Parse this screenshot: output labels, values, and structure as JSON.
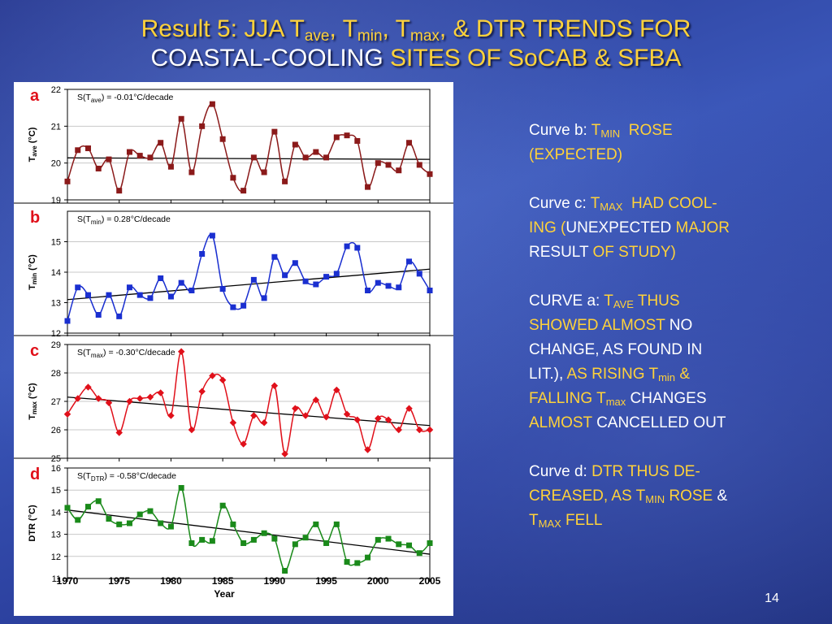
{
  "slide": {
    "title_line1_prefix": "Result 5: JJA T",
    "title_sub_ave": "ave",
    "title_sep1": ", T",
    "title_sub_min": "min",
    "title_sep2": ", T",
    "title_sub_max": "max",
    "title_line1_suffix": ", & DTR TRENDS FOR",
    "title_line2_white": "COASTAL-COOLING",
    "title_line2_yellow": "SITES OF SoCAB & SFBA",
    "page_number": "14",
    "colors": {
      "accent": "#ffd23a",
      "text": "#ffffff",
      "background": "#2b3f9d"
    }
  },
  "notes": {
    "b1_white": "Curve b: ",
    "b1_t": "T",
    "b1_sub": "MIN",
    "b1_yellow": "ROSE",
    "b2": "(EXPECTED)",
    "c1_white": "Curve c: ",
    "c1_t": "T",
    "c1_sub": "MAX",
    "c1_yellow": "HAD COOL-",
    "c2_y1": "ING (",
    "c2_white": "UNEXPECTED",
    "c2_y2": " MAJOR",
    "c3_white": "RESULT ",
    "c3_yellow": "OF STUDY)",
    "a1_white": "CURVE a: ",
    "a1_t": "T",
    "a1_sub": "AVE",
    "a1_yellow": " THUS",
    "a2_yellow": "SHOWED ALMOST ",
    "a2_white": "NO",
    "a3_white": "CHANGE, AS FOUND IN",
    "a4_white": "LIT.), ",
    "a4_yellow": "AS RISING T",
    "a4_sub": "min",
    "a4_yellow2": " &",
    "a5_yellow": "FALLING T",
    "a5_sub": "max",
    "a5_white": " CHANGES",
    "a6_yellow": "ALMOST ",
    "a6_white": "CANCELLED OUT",
    "d1_white": "Curve d: ",
    "d1_yellow": "DTR THUS DE-",
    "d2_yellow": "CREASED, AS T",
    "d2_sub": "MIN",
    "d2_white": " ROSE",
    "d2_amp": " &",
    "d3_t": "T",
    "d3_sub": "MAX",
    "d3_white": " FELL"
  },
  "chart_data": [
    {
      "type": "line",
      "panel_letter": "a",
      "ylabel_main": "T",
      "ylabel_sub": "ave",
      "ylabel_unit": " (°C)",
      "annotation_prefix": "S(T",
      "annotation_sub": "ave",
      "annotation_suffix": ") = -0.01°C/decade",
      "ylim": [
        19,
        22
      ],
      "yticks": [
        19,
        20,
        21,
        22
      ],
      "grid": "horizontal",
      "color": "#8b1a1a",
      "marker": "square",
      "years": [
        1970,
        1971,
        1972,
        1973,
        1974,
        1975,
        1976,
        1977,
        1978,
        1979,
        1980,
        1981,
        1982,
        1983,
        1984,
        1985,
        1986,
        1987,
        1988,
        1989,
        1990,
        1991,
        1992,
        1993,
        1994,
        1995,
        1996,
        1997,
        1998,
        1999,
        2000,
        2001,
        2002,
        2003,
        2004,
        2005
      ],
      "values": [
        19.5,
        20.35,
        20.4,
        19.85,
        20.1,
        19.25,
        20.3,
        20.2,
        20.15,
        20.55,
        19.9,
        21.2,
        19.75,
        21.0,
        21.6,
        20.65,
        19.6,
        19.25,
        20.15,
        19.75,
        20.85,
        19.5,
        20.5,
        20.15,
        20.3,
        20.15,
        20.7,
        20.75,
        20.6,
        19.35,
        20.0,
        19.95,
        19.8,
        20.55,
        19.95,
        19.7
      ],
      "trend": [
        20.14,
        20.1
      ]
    },
    {
      "type": "line",
      "panel_letter": "b",
      "ylabel_main": "T",
      "ylabel_sub": "min",
      "ylabel_unit": " (°C)",
      "annotation_prefix": "S(T",
      "annotation_sub": "min",
      "annotation_suffix": ") = 0.28°C/decade",
      "ylim": [
        12,
        16
      ],
      "yticks": [
        12,
        13,
        14,
        15
      ],
      "grid": "horizontal",
      "color": "#1a2fd0",
      "marker": "square",
      "years": [
        1970,
        1971,
        1972,
        1973,
        1974,
        1975,
        1976,
        1977,
        1978,
        1979,
        1980,
        1981,
        1982,
        1983,
        1984,
        1985,
        1986,
        1987,
        1988,
        1989,
        1990,
        1991,
        1992,
        1993,
        1994,
        1995,
        1996,
        1997,
        1998,
        1999,
        2000,
        2001,
        2002,
        2003,
        2004,
        2005
      ],
      "values": [
        12.4,
        13.5,
        13.25,
        12.6,
        13.25,
        12.55,
        13.5,
        13.25,
        13.15,
        13.8,
        13.2,
        13.65,
        13.4,
        14.6,
        15.2,
        13.45,
        12.85,
        12.9,
        13.75,
        13.15,
        14.5,
        13.9,
        14.3,
        13.7,
        13.6,
        13.85,
        13.95,
        14.85,
        14.8,
        13.4,
        13.65,
        13.55,
        13.5,
        14.35,
        13.95,
        13.4
      ],
      "trend": [
        13.1,
        14.1
      ]
    },
    {
      "type": "line",
      "panel_letter": "c",
      "ylabel_main": "T",
      "ylabel_sub": "max",
      "ylabel_unit": " (°C)",
      "annotation_prefix": "S(T",
      "annotation_sub": "max",
      "annotation_suffix": ") = -0.30°C/decade",
      "ylim": [
        25,
        29
      ],
      "yticks": [
        25,
        26,
        27,
        28,
        29
      ],
      "grid": "horizontal",
      "color": "#e0101a",
      "marker": "diamond",
      "years": [
        1970,
        1971,
        1972,
        1973,
        1974,
        1975,
        1976,
        1977,
        1978,
        1979,
        1980,
        1981,
        1982,
        1983,
        1984,
        1985,
        1986,
        1987,
        1988,
        1989,
        1990,
        1991,
        1992,
        1993,
        1994,
        1995,
        1996,
        1997,
        1998,
        1999,
        2000,
        2001,
        2002,
        2003,
        2004,
        2005
      ],
      "values": [
        26.55,
        27.1,
        27.5,
        27.1,
        26.95,
        25.9,
        27.0,
        27.1,
        27.15,
        27.3,
        26.5,
        28.75,
        26.0,
        27.35,
        27.9,
        27.75,
        26.25,
        25.5,
        26.5,
        26.25,
        27.55,
        25.15,
        26.75,
        26.5,
        27.05,
        26.45,
        27.4,
        26.55,
        26.35,
        25.3,
        26.4,
        26.35,
        26.0,
        26.75,
        26.0,
        26.0
      ],
      "trend": [
        27.15,
        26.15
      ]
    },
    {
      "type": "line",
      "panel_letter": "d",
      "ylabel_main": "DTR",
      "ylabel_sub": "",
      "ylabel_unit": "  (°C)",
      "annotation_prefix": "S(T",
      "annotation_sub": "DTR",
      "annotation_suffix": ") = -0.58°C/decade",
      "ylim": [
        11,
        16
      ],
      "yticks": [
        11,
        12,
        13,
        14,
        15,
        16
      ],
      "grid": "horizontal",
      "color": "#1a8a1a",
      "marker": "square",
      "years": [
        1970,
        1971,
        1972,
        1973,
        1974,
        1975,
        1976,
        1977,
        1978,
        1979,
        1980,
        1981,
        1982,
        1983,
        1984,
        1985,
        1986,
        1987,
        1988,
        1989,
        1990,
        1991,
        1992,
        1993,
        1994,
        1995,
        1996,
        1997,
        1998,
        1999,
        2000,
        2001,
        2002,
        2003,
        2004,
        2005
      ],
      "values": [
        14.2,
        13.65,
        14.25,
        14.5,
        13.7,
        13.45,
        13.5,
        13.9,
        14.05,
        13.5,
        13.35,
        15.1,
        12.6,
        12.75,
        12.7,
        14.3,
        13.45,
        12.6,
        12.75,
        13.05,
        12.8,
        11.35,
        12.55,
        12.85,
        13.45,
        12.6,
        13.45,
        11.75,
        11.7,
        11.95,
        12.75,
        12.8,
        12.55,
        12.5,
        12.15,
        12.6
      ],
      "trend": [
        14.1,
        12.1
      ]
    }
  ],
  "x_axis": {
    "label": "Year",
    "xlim": [
      1970,
      2005
    ],
    "ticks": [
      1970,
      1975,
      1980,
      1985,
      1990,
      1995,
      2000,
      2005
    ]
  }
}
